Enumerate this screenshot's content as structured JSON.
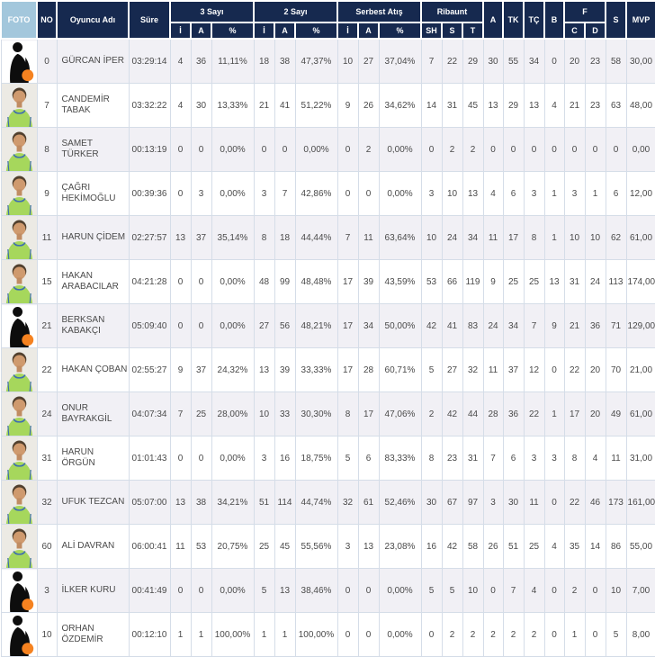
{
  "colors": {
    "header_bg": "#16294f",
    "foto_header_bg": "#a3c7dc",
    "row_alt_bg": "#f1f0f5",
    "grid_border": "#d5dde8",
    "ball_orange": "#f58220",
    "jersey_green": "#a6d75c"
  },
  "table": {
    "headers": {
      "foto": "FOTO",
      "no": "NO",
      "player": "Oyuncu Adı",
      "time": "Süre",
      "three_pt": "3 Sayı",
      "two_pt": "2 Sayı",
      "free_throw": "Serbest Atış",
      "rebound": "Ribaunt",
      "sub_i": "İ",
      "sub_a": "A",
      "sub_pct": "%",
      "sub_sh": "SH",
      "sub_s": "S",
      "sub_t": "T",
      "col_a": "A",
      "col_tk": "TK",
      "col_tc": "TÇ",
      "col_b": "B",
      "col_f": "F",
      "sub_c": "C",
      "sub_d": "D",
      "col_s": "S",
      "col_mvp": "MVP"
    },
    "rows": [
      {
        "photo": "silhouette",
        "no": "0",
        "name": "GÜRCAN İPER",
        "time": "03:29:14",
        "p3i": "4",
        "p3a": "36",
        "p3p": "11,11%",
        "p2i": "18",
        "p2a": "38",
        "p2p": "47,37%",
        "fti": "10",
        "fta": "27",
        "ftp": "37,04%",
        "rsh": "7",
        "rs": "22",
        "rt": "29",
        "a": "30",
        "tk": "55",
        "tc": "34",
        "b": "0",
        "fc": "20",
        "fd": "23",
        "s": "58",
        "mvp": "30,00"
      },
      {
        "photo": "photo",
        "no": "7",
        "name": "CANDEMİR TABAK",
        "time": "03:32:22",
        "p3i": "4",
        "p3a": "30",
        "p3p": "13,33%",
        "p2i": "21",
        "p2a": "41",
        "p2p": "51,22%",
        "fti": "9",
        "fta": "26",
        "ftp": "34,62%",
        "rsh": "14",
        "rs": "31",
        "rt": "45",
        "a": "13",
        "tk": "29",
        "tc": "13",
        "b": "4",
        "fc": "21",
        "fd": "23",
        "s": "63",
        "mvp": "48,00"
      },
      {
        "photo": "photo",
        "no": "8",
        "name": "SAMET TÜRKER",
        "time": "00:13:19",
        "p3i": "0",
        "p3a": "0",
        "p3p": "0,00%",
        "p2i": "0",
        "p2a": "0",
        "p2p": "0,00%",
        "fti": "0",
        "fta": "2",
        "ftp": "0,00%",
        "rsh": "0",
        "rs": "2",
        "rt": "2",
        "a": "0",
        "tk": "0",
        "tc": "0",
        "b": "0",
        "fc": "0",
        "fd": "0",
        "s": "0",
        "mvp": "0,00"
      },
      {
        "photo": "photo",
        "no": "9",
        "name": "ÇAĞRI HEKİMOĞLU",
        "time": "00:39:36",
        "p3i": "0",
        "p3a": "3",
        "p3p": "0,00%",
        "p2i": "3",
        "p2a": "7",
        "p2p": "42,86%",
        "fti": "0",
        "fta": "0",
        "ftp": "0,00%",
        "rsh": "3",
        "rs": "10",
        "rt": "13",
        "a": "4",
        "tk": "6",
        "tc": "3",
        "b": "1",
        "fc": "3",
        "fd": "1",
        "s": "6",
        "mvp": "12,00"
      },
      {
        "photo": "photo",
        "no": "11",
        "name": "HARUN ÇİDEM",
        "time": "02:27:57",
        "p3i": "13",
        "p3a": "37",
        "p3p": "35,14%",
        "p2i": "8",
        "p2a": "18",
        "p2p": "44,44%",
        "fti": "7",
        "fta": "11",
        "ftp": "63,64%",
        "rsh": "10",
        "rs": "24",
        "rt": "34",
        "a": "11",
        "tk": "17",
        "tc": "8",
        "b": "1",
        "fc": "10",
        "fd": "10",
        "s": "62",
        "mvp": "61,00"
      },
      {
        "photo": "photo",
        "no": "15",
        "name": "HAKAN ARABACILAR",
        "time": "04:21:28",
        "p3i": "0",
        "p3a": "0",
        "p3p": "0,00%",
        "p2i": "48",
        "p2a": "99",
        "p2p": "48,48%",
        "fti": "17",
        "fta": "39",
        "ftp": "43,59%",
        "rsh": "53",
        "rs": "66",
        "rt": "119",
        "a": "9",
        "tk": "25",
        "tc": "25",
        "b": "13",
        "fc": "31",
        "fd": "24",
        "s": "113",
        "mvp": "174,00"
      },
      {
        "photo": "silhouette",
        "no": "21",
        "name": "BERKSAN KABAKÇI",
        "time": "05:09:40",
        "p3i": "0",
        "p3a": "0",
        "p3p": "0,00%",
        "p2i": "27",
        "p2a": "56",
        "p2p": "48,21%",
        "fti": "17",
        "fta": "34",
        "ftp": "50,00%",
        "rsh": "42",
        "rs": "41",
        "rt": "83",
        "a": "24",
        "tk": "34",
        "tc": "7",
        "b": "9",
        "fc": "21",
        "fd": "36",
        "s": "71",
        "mvp": "129,00"
      },
      {
        "photo": "photo",
        "no": "22",
        "name": "HAKAN ÇOBAN",
        "time": "02:55:27",
        "p3i": "9",
        "p3a": "37",
        "p3p": "24,32%",
        "p2i": "13",
        "p2a": "39",
        "p2p": "33,33%",
        "fti": "17",
        "fta": "28",
        "ftp": "60,71%",
        "rsh": "5",
        "rs": "27",
        "rt": "32",
        "a": "11",
        "tk": "37",
        "tc": "12",
        "b": "0",
        "fc": "22",
        "fd": "20",
        "s": "70",
        "mvp": "21,00"
      },
      {
        "photo": "photo",
        "no": "24",
        "name": "ONUR BAYRAKGİL",
        "time": "04:07:34",
        "p3i": "7",
        "p3a": "25",
        "p3p": "28,00%",
        "p2i": "10",
        "p2a": "33",
        "p2p": "30,30%",
        "fti": "8",
        "fta": "17",
        "ftp": "47,06%",
        "rsh": "2",
        "rs": "42",
        "rt": "44",
        "a": "28",
        "tk": "36",
        "tc": "22",
        "b": "1",
        "fc": "17",
        "fd": "20",
        "s": "49",
        "mvp": "61,00"
      },
      {
        "photo": "photo",
        "no": "31",
        "name": "HARUN ÖRGÜN",
        "time": "01:01:43",
        "p3i": "0",
        "p3a": "0",
        "p3p": "0,00%",
        "p2i": "3",
        "p2a": "16",
        "p2p": "18,75%",
        "fti": "5",
        "fta": "6",
        "ftp": "83,33%",
        "rsh": "8",
        "rs": "23",
        "rt": "31",
        "a": "7",
        "tk": "6",
        "tc": "3",
        "b": "3",
        "fc": "8",
        "fd": "4",
        "s": "11",
        "mvp": "31,00"
      },
      {
        "photo": "photo",
        "no": "32",
        "name": "UFUK TEZCAN",
        "time": "05:07:00",
        "p3i": "13",
        "p3a": "38",
        "p3p": "34,21%",
        "p2i": "51",
        "p2a": "114",
        "p2p": "44,74%",
        "fti": "32",
        "fta": "61",
        "ftp": "52,46%",
        "rsh": "30",
        "rs": "67",
        "rt": "97",
        "a": "3",
        "tk": "30",
        "tc": "11",
        "b": "0",
        "fc": "22",
        "fd": "46",
        "s": "173",
        "mvp": "161,00"
      },
      {
        "photo": "photo",
        "no": "60",
        "name": "ALİ DAVRAN",
        "time": "06:00:41",
        "p3i": "11",
        "p3a": "53",
        "p3p": "20,75%",
        "p2i": "25",
        "p2a": "45",
        "p2p": "55,56%",
        "fti": "3",
        "fta": "13",
        "ftp": "23,08%",
        "rsh": "16",
        "rs": "42",
        "rt": "58",
        "a": "26",
        "tk": "51",
        "tc": "25",
        "b": "4",
        "fc": "35",
        "fd": "14",
        "s": "86",
        "mvp": "55,00"
      },
      {
        "photo": "silhouette",
        "no": "3",
        "name": "İLKER KURU",
        "time": "00:41:49",
        "p3i": "0",
        "p3a": "0",
        "p3p": "0,00%",
        "p2i": "5",
        "p2a": "13",
        "p2p": "38,46%",
        "fti": "0",
        "fta": "0",
        "ftp": "0,00%",
        "rsh": "5",
        "rs": "5",
        "rt": "10",
        "a": "0",
        "tk": "7",
        "tc": "4",
        "b": "0",
        "fc": "2",
        "fd": "0",
        "s": "10",
        "mvp": "7,00"
      },
      {
        "photo": "silhouette",
        "no": "10",
        "name": "ORHAN ÖZDEMİR",
        "time": "00:12:10",
        "p3i": "1",
        "p3a": "1",
        "p3p": "100,00%",
        "p2i": "1",
        "p2a": "1",
        "p2p": "100,00%",
        "fti": "0",
        "fta": "0",
        "ftp": "0,00%",
        "rsh": "0",
        "rs": "2",
        "rt": "2",
        "a": "2",
        "tk": "2",
        "tc": "2",
        "b": "0",
        "fc": "1",
        "fd": "0",
        "s": "5",
        "mvp": "8,00"
      }
    ]
  }
}
